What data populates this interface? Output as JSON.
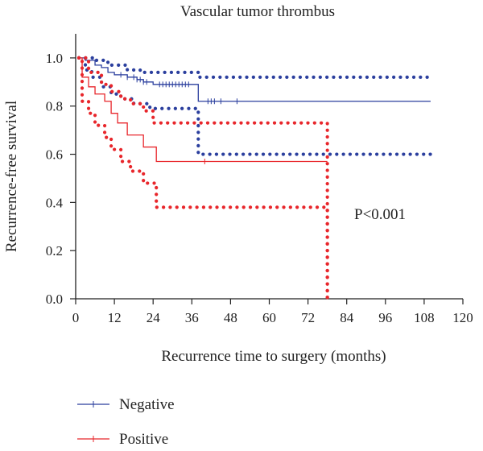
{
  "chart_data": {
    "type": "line",
    "subtype": "kaplan-meier",
    "title": "Vascular tumor thrombus",
    "xlabel": "Recurrence time to surgery (months)",
    "ylabel": "Recurrence-free survival",
    "xlim": [
      0,
      120
    ],
    "ylim": [
      0,
      1.1
    ],
    "xticks": [
      0,
      12,
      24,
      36,
      48,
      60,
      72,
      84,
      96,
      108,
      120
    ],
    "yticks": [
      0.0,
      0.2,
      0.4,
      0.6,
      0.8,
      1.0
    ],
    "ytick_labels": [
      "0.0",
      "0.2",
      "0.4",
      "0.6",
      "0.8",
      "1.0"
    ],
    "annotation": "P<0.001",
    "grid": false,
    "legend_position": "bottom-left",
    "series": [
      {
        "name": "Negative",
        "color": "#2b3f9e",
        "style": "solid",
        "steps": [
          [
            1,
            1.0
          ],
          [
            3,
            0.99
          ],
          [
            6,
            0.97
          ],
          [
            8,
            0.96
          ],
          [
            10,
            0.94
          ],
          [
            12,
            0.93
          ],
          [
            16,
            0.92
          ],
          [
            19,
            0.91
          ],
          [
            21,
            0.9
          ],
          [
            24,
            0.89
          ],
          [
            38,
            0.82
          ],
          [
            110,
            0.82
          ]
        ],
        "censor_x": [
          14,
          16,
          18,
          19,
          20,
          21,
          22,
          26,
          27,
          28,
          29,
          30,
          31,
          32,
          33,
          34,
          35,
          41,
          42,
          43,
          45,
          50
        ]
      },
      {
        "name": "Positive",
        "color": "#e8262b",
        "style": "solid",
        "steps": [
          [
            1,
            1.0
          ],
          [
            2,
            0.92
          ],
          [
            4,
            0.88
          ],
          [
            6,
            0.85
          ],
          [
            9,
            0.82
          ],
          [
            11,
            0.77
          ],
          [
            13,
            0.73
          ],
          [
            16,
            0.68
          ],
          [
            21,
            0.63
          ],
          [
            25,
            0.57
          ],
          [
            78,
            0.57
          ]
        ],
        "censor_x": [
          40
        ]
      },
      {
        "name": "",
        "color": "#2b3f9e",
        "style": "dotted",
        "steps": [
          [
            1,
            1.0
          ],
          [
            6,
            0.99
          ],
          [
            10,
            0.97
          ],
          [
            16,
            0.95
          ],
          [
            20,
            0.94
          ],
          [
            38,
            0.92
          ],
          [
            110,
            0.92
          ]
        ]
      },
      {
        "name": "",
        "color": "#2b3f9e",
        "style": "dotted",
        "steps": [
          [
            1,
            1.0
          ],
          [
            3,
            0.95
          ],
          [
            5,
            0.92
          ],
          [
            8,
            0.88
          ],
          [
            11,
            0.85
          ],
          [
            14,
            0.83
          ],
          [
            18,
            0.81
          ],
          [
            23,
            0.79
          ],
          [
            36,
            0.79
          ],
          [
            38,
            0.6
          ],
          [
            110,
            0.6
          ]
        ]
      },
      {
        "name": "",
        "color": "#e8262b",
        "style": "dotted",
        "steps": [
          [
            1,
            1.0
          ],
          [
            4,
            0.94
          ],
          [
            8,
            0.89
          ],
          [
            11,
            0.86
          ],
          [
            14,
            0.83
          ],
          [
            17,
            0.81
          ],
          [
            21,
            0.78
          ],
          [
            24,
            0.73
          ],
          [
            78,
            0.73
          ],
          [
            78,
            0.0
          ]
        ]
      },
      {
        "name": "",
        "color": "#e8262b",
        "style": "dotted",
        "steps": [
          [
            1,
            1.0
          ],
          [
            2,
            0.82
          ],
          [
            4,
            0.77
          ],
          [
            6,
            0.72
          ],
          [
            9,
            0.67
          ],
          [
            11,
            0.62
          ],
          [
            14,
            0.57
          ],
          [
            17,
            0.53
          ],
          [
            21,
            0.48
          ],
          [
            25,
            0.38
          ],
          [
            78,
            0.38
          ],
          [
            78,
            0.0
          ]
        ]
      }
    ],
    "legend": [
      {
        "label": "Negative",
        "color": "#2b3f9e"
      },
      {
        "label": "Positive",
        "color": "#e8262b"
      }
    ]
  }
}
